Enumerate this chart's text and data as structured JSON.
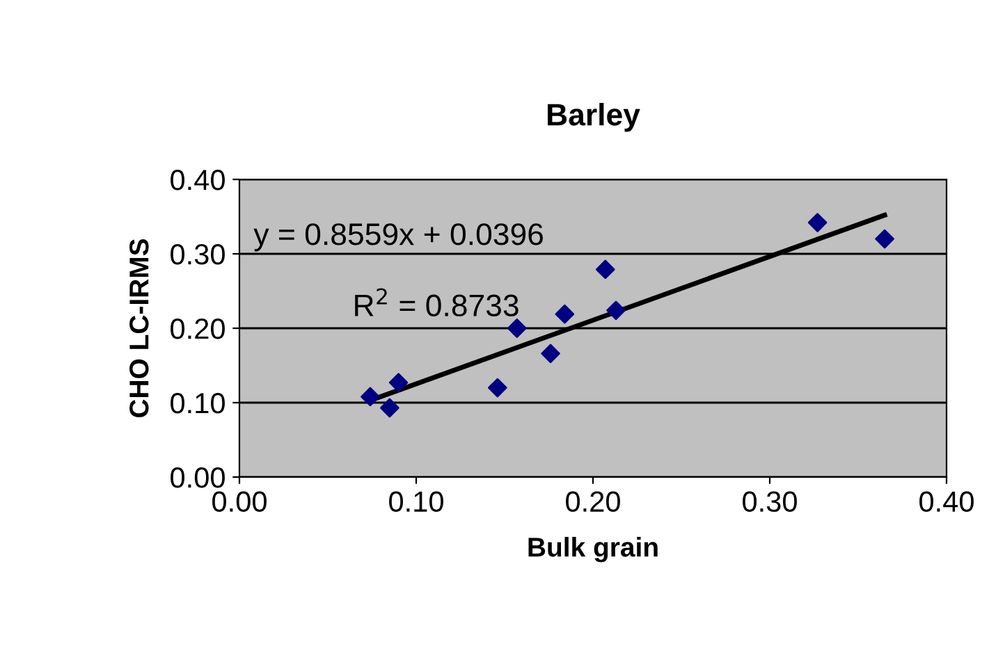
{
  "chart_data": {
    "type": "scatter",
    "title": "Barley",
    "xlabel": "Bulk grain",
    "ylabel": "CHO LC-IRMS",
    "series": [
      {
        "color": "#000080",
        "marker": "diamond",
        "x": [
          0.074,
          0.085,
          0.09,
          0.146,
          0.157,
          0.176,
          0.184,
          0.207,
          0.213,
          0.327,
          0.365
        ],
        "values": [
          0.108,
          0.093,
          0.127,
          0.12,
          0.2,
          0.166,
          0.219,
          0.279,
          0.224,
          0.342,
          0.32
        ]
      },
      {
        "type": "line",
        "color": "#000000",
        "marker": "none",
        "x": [
          0.074,
          0.365
        ],
        "values": [
          0.103,
          0.352
        ]
      }
    ],
    "annotations": [
      "y = 0.8559x + 0.0396",
      "R$^{2}$ = 0.8733"
    ],
    "xlim": [
      0,
      0.4
    ],
    "xticks": [
      {
        "value": 0,
        "label": "0.00"
      },
      {
        "value": 0.1,
        "label": "0.10"
      },
      {
        "value": 0.2,
        "label": "0.20"
      },
      {
        "value": 0.3,
        "label": "0.30"
      },
      {
        "value": 0.4,
        "label": "0.40"
      }
    ],
    "ylim": [
      0,
      0.4
    ],
    "yticks": [
      {
        "value": 0,
        "label": "0.00"
      },
      {
        "value": 0.1,
        "label": "0.10"
      },
      {
        "value": 0.2,
        "label": "0.20"
      },
      {
        "value": 0.3,
        "label": "0.30"
      },
      {
        "value": 0.4,
        "label": "0.40"
      }
    ],
    "grid": "y",
    "legend": false
  }
}
